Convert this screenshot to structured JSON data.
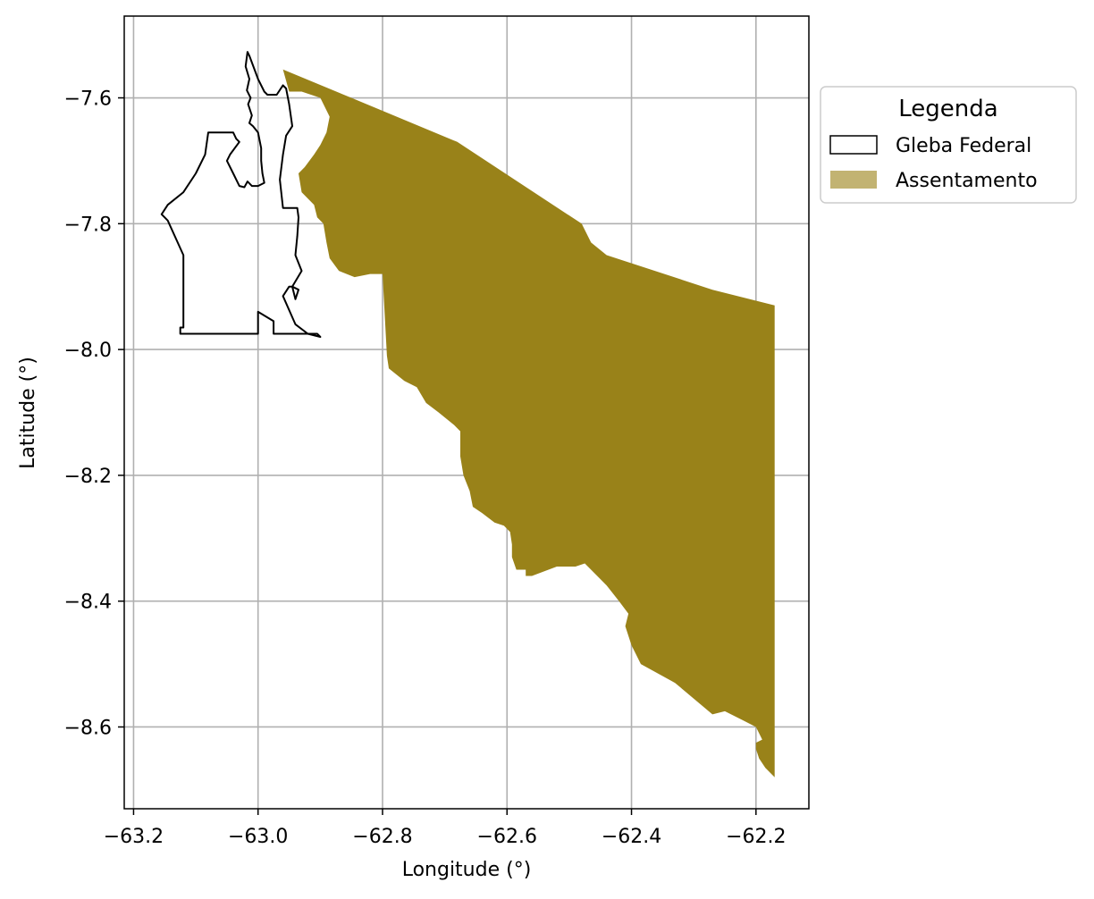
{
  "chart_data": {
    "type": "map",
    "xlabel": "Longitude (°)",
    "ylabel": "Latitude (°)",
    "xlim": [
      -63.215,
      -62.115
    ],
    "ylim": [
      -8.73,
      -7.47
    ],
    "xticks": [
      -63.2,
      -63.0,
      -62.8,
      -62.6,
      -62.4,
      -62.2
    ],
    "yticks": [
      -7.6,
      -7.8,
      -8.0,
      -8.2,
      -8.4,
      -8.6
    ],
    "xtick_labels": [
      "−63.2",
      "−63.0",
      "−62.8",
      "−62.6",
      "−62.4",
      "−62.2"
    ],
    "ytick_labels": [
      "−7.6",
      "−7.8",
      "−8.0",
      "−8.2",
      "−8.4",
      "−8.6"
    ],
    "grid": true,
    "legend": {
      "title": "Legenda",
      "placement": "outside upper right",
      "entries": [
        "Gleba Federal",
        "Assentamento"
      ]
    },
    "colors": {
      "gleba_edge": "#000000",
      "assentamento_fill": "#998219",
      "assentamento_legend_patch": "#c2b372",
      "grid": "#b0b0b0"
    },
    "layers": [
      {
        "name": "Gleba Federal",
        "style": "outline",
        "coordinates": [
          [
            -63.017,
            -7.527
          ],
          [
            -63.014,
            -7.533
          ],
          [
            -63.0,
            -7.57
          ],
          [
            -62.99,
            -7.59
          ],
          [
            -62.985,
            -7.595
          ],
          [
            -62.97,
            -7.595
          ],
          [
            -62.96,
            -7.58
          ],
          [
            -62.955,
            -7.585
          ],
          [
            -62.95,
            -7.61
          ],
          [
            -62.945,
            -7.645
          ],
          [
            -62.955,
            -7.66
          ],
          [
            -62.96,
            -7.69
          ],
          [
            -62.965,
            -7.73
          ],
          [
            -62.96,
            -7.775
          ],
          [
            -62.937,
            -7.775
          ],
          [
            -62.935,
            -7.79
          ],
          [
            -62.937,
            -7.82
          ],
          [
            -62.94,
            -7.85
          ],
          [
            -62.93,
            -7.875
          ],
          [
            -62.945,
            -7.9
          ],
          [
            -62.935,
            -7.905
          ],
          [
            -62.94,
            -7.92
          ],
          [
            -62.945,
            -7.9
          ],
          [
            -62.95,
            -7.9
          ],
          [
            -62.96,
            -7.915
          ],
          [
            -62.94,
            -7.96
          ],
          [
            -62.92,
            -7.975
          ],
          [
            -62.9,
            -7.98
          ],
          [
            -62.905,
            -7.975
          ],
          [
            -62.96,
            -7.975
          ],
          [
            -62.975,
            -7.975
          ],
          [
            -62.975,
            -7.955
          ],
          [
            -63.0,
            -7.94
          ],
          [
            -63.0,
            -7.975
          ],
          [
            -63.125,
            -7.975
          ],
          [
            -63.125,
            -7.965
          ],
          [
            -63.12,
            -7.965
          ],
          [
            -63.12,
            -7.85
          ],
          [
            -63.145,
            -7.795
          ],
          [
            -63.15,
            -7.79
          ],
          [
            -63.155,
            -7.785
          ],
          [
            -63.145,
            -7.77
          ],
          [
            -63.12,
            -7.75
          ],
          [
            -63.1,
            -7.72
          ],
          [
            -63.085,
            -7.69
          ],
          [
            -63.08,
            -7.655
          ],
          [
            -63.04,
            -7.655
          ],
          [
            -63.035,
            -7.665
          ],
          [
            -63.03,
            -7.67
          ],
          [
            -63.045,
            -7.69
          ],
          [
            -63.05,
            -7.7
          ],
          [
            -63.04,
            -7.72
          ],
          [
            -63.03,
            -7.74
          ],
          [
            -63.022,
            -7.742
          ],
          [
            -63.017,
            -7.733
          ],
          [
            -63.01,
            -7.74
          ],
          [
            -63.0,
            -7.74
          ],
          [
            -62.99,
            -7.735
          ],
          [
            -62.993,
            -7.72
          ],
          [
            -62.995,
            -7.7
          ],
          [
            -62.995,
            -7.68
          ],
          [
            -63.0,
            -7.655
          ],
          [
            -63.008,
            -7.645
          ],
          [
            -63.014,
            -7.64
          ],
          [
            -63.01,
            -7.628
          ],
          [
            -63.016,
            -7.61
          ],
          [
            -63.012,
            -7.6
          ],
          [
            -63.018,
            -7.588
          ],
          [
            -63.014,
            -7.57
          ],
          [
            -63.02,
            -7.55
          ],
          [
            -63.017,
            -7.527
          ]
        ]
      },
      {
        "name": "Assentamento",
        "style": "filled",
        "coordinates": [
          [
            -62.96,
            -7.555
          ],
          [
            -62.85,
            -7.6
          ],
          [
            -62.68,
            -7.67
          ],
          [
            -62.48,
            -7.8
          ],
          [
            -62.465,
            -7.83
          ],
          [
            -62.44,
            -7.85
          ],
          [
            -62.27,
            -7.905
          ],
          [
            -62.17,
            -7.93
          ],
          [
            -62.17,
            -8.68
          ],
          [
            -62.185,
            -8.665
          ],
          [
            -62.195,
            -8.65
          ],
          [
            -62.2,
            -8.635
          ],
          [
            -62.2,
            -8.625
          ],
          [
            -62.19,
            -8.62
          ],
          [
            -62.2,
            -8.6
          ],
          [
            -62.22,
            -8.59
          ],
          [
            -62.25,
            -8.575
          ],
          [
            -62.27,
            -8.58
          ],
          [
            -62.33,
            -8.53
          ],
          [
            -62.385,
            -8.5
          ],
          [
            -62.4,
            -8.47
          ],
          [
            -62.41,
            -8.44
          ],
          [
            -62.405,
            -8.42
          ],
          [
            -62.42,
            -8.4
          ],
          [
            -62.44,
            -8.375
          ],
          [
            -62.455,
            -8.36
          ],
          [
            -62.475,
            -8.34
          ],
          [
            -62.49,
            -8.345
          ],
          [
            -62.52,
            -8.345
          ],
          [
            -62.56,
            -8.36
          ],
          [
            -62.57,
            -8.36
          ],
          [
            -62.57,
            -8.35
          ],
          [
            -62.585,
            -8.35
          ],
          [
            -62.592,
            -8.33
          ],
          [
            -62.592,
            -8.31
          ],
          [
            -62.595,
            -8.29
          ],
          [
            -62.605,
            -8.28
          ],
          [
            -62.62,
            -8.275
          ],
          [
            -62.64,
            -8.26
          ],
          [
            -62.655,
            -8.25
          ],
          [
            -62.66,
            -8.225
          ],
          [
            -62.67,
            -8.2
          ],
          [
            -62.675,
            -8.17
          ],
          [
            -62.675,
            -8.13
          ],
          [
            -62.685,
            -8.12
          ],
          [
            -62.71,
            -8.1
          ],
          [
            -62.73,
            -8.085
          ],
          [
            -62.745,
            -8.06
          ],
          [
            -62.765,
            -8.05
          ],
          [
            -62.79,
            -8.03
          ],
          [
            -62.793,
            -8.01
          ],
          [
            -62.8,
            -7.88
          ],
          [
            -62.82,
            -7.88
          ],
          [
            -62.845,
            -7.885
          ],
          [
            -62.87,
            -7.875
          ],
          [
            -62.885,
            -7.855
          ],
          [
            -62.89,
            -7.83
          ],
          [
            -62.895,
            -7.8
          ],
          [
            -62.905,
            -7.79
          ],
          [
            -62.91,
            -7.77
          ],
          [
            -62.93,
            -7.75
          ],
          [
            -62.935,
            -7.72
          ],
          [
            -62.925,
            -7.71
          ],
          [
            -62.91,
            -7.69
          ],
          [
            -62.9,
            -7.675
          ],
          [
            -62.89,
            -7.655
          ],
          [
            -62.885,
            -7.63
          ],
          [
            -62.9,
            -7.6
          ],
          [
            -62.93,
            -7.59
          ],
          [
            -62.95,
            -7.59
          ],
          [
            -62.96,
            -7.555
          ]
        ]
      }
    ]
  }
}
